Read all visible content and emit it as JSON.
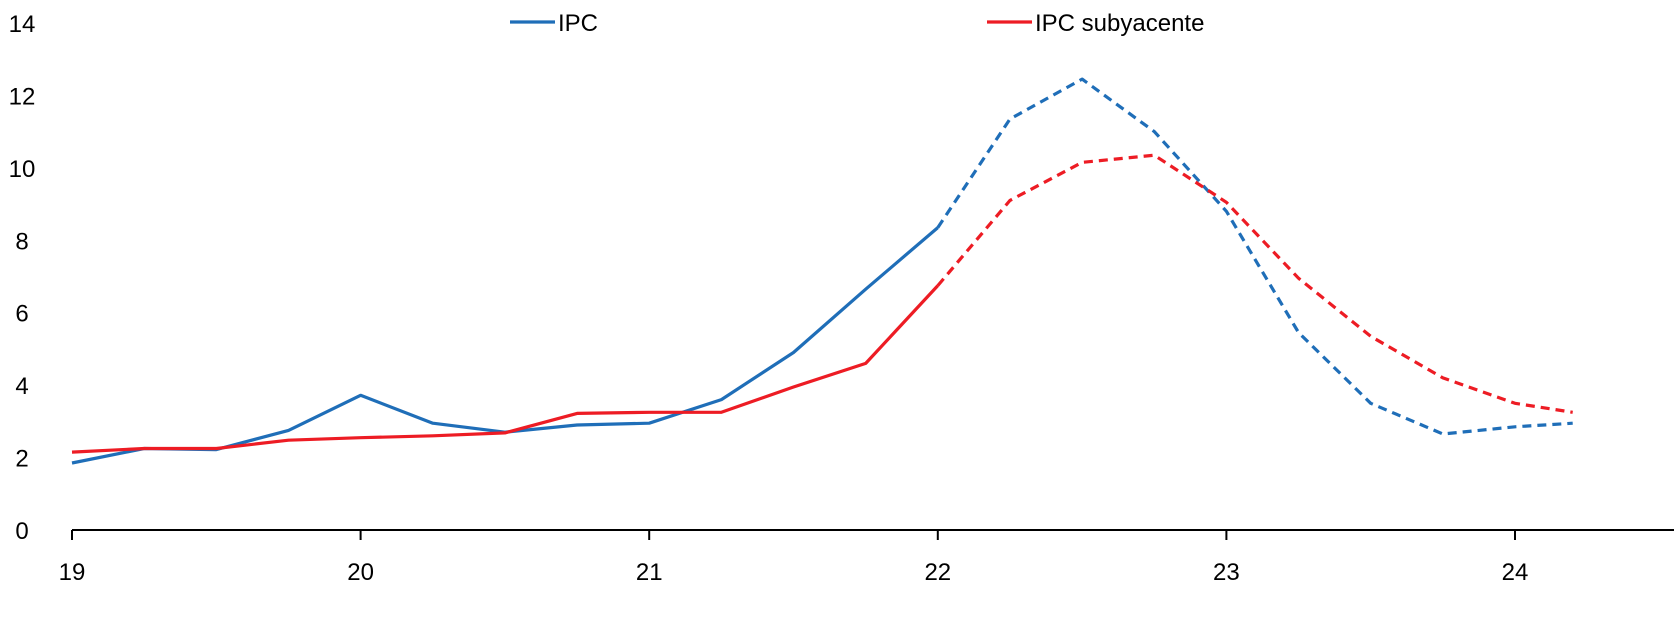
{
  "chart_data": {
    "type": "line",
    "title": "",
    "xlabel": "",
    "ylabel": "",
    "xlim": [
      19,
      24.2
    ],
    "ylim": [
      0,
      14
    ],
    "x_ticks": [
      "19",
      "20",
      "21",
      "22",
      "23",
      "24"
    ],
    "y_ticks": [
      "0",
      "2",
      "4",
      "6",
      "8",
      "10",
      "12",
      "14"
    ],
    "grid": false,
    "legend_position": "top",
    "series": [
      {
        "name": "IPC",
        "color": "#1f6eb8",
        "x": [
          19.0,
          19.25,
          19.5,
          19.75,
          20.0,
          20.25,
          20.5,
          20.75,
          21.0,
          21.25,
          21.5,
          21.75,
          22.0,
          22.25,
          22.5,
          22.75,
          23.0,
          23.25,
          23.5,
          23.75,
          24.0,
          24.2
        ],
        "values": [
          1.85,
          2.25,
          2.22,
          2.75,
          3.72,
          2.95,
          2.7,
          2.9,
          2.95,
          3.6,
          4.9,
          6.65,
          8.35,
          11.35,
          12.45,
          11.0,
          8.8,
          5.45,
          3.5,
          2.65,
          2.85,
          2.95
        ],
        "dashed_from_x": 22.0
      },
      {
        "name": "IPC subyacente",
        "color": "#ed1c24",
        "x": [
          19.0,
          19.25,
          19.5,
          19.75,
          20.0,
          20.25,
          20.5,
          20.75,
          21.0,
          21.25,
          21.5,
          21.75,
          22.0,
          22.25,
          22.5,
          22.75,
          23.0,
          23.25,
          23.5,
          23.75,
          24.0,
          24.2
        ],
        "values": [
          2.15,
          2.25,
          2.25,
          2.48,
          2.55,
          2.6,
          2.68,
          3.22,
          3.25,
          3.25,
          3.95,
          4.6,
          6.75,
          9.1,
          10.15,
          10.35,
          9.05,
          6.95,
          5.35,
          4.2,
          3.5,
          3.25
        ],
        "dashed_from_x": 22.0
      }
    ]
  }
}
